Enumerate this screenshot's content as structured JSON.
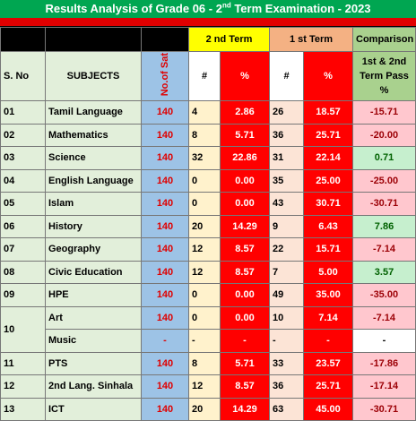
{
  "header": {
    "title_before": "Results Analysis of Grade  06  - 2",
    "title_sup": "nd",
    "title_after": " Term Examination  - 2023"
  },
  "columns": {
    "term2": "2 nd Term",
    "term1": "1 st Term",
    "comparison": "Comparison",
    "sno": "S. No",
    "subjects": "SUBJECTS",
    "sat": "No.of Sat",
    "t2n": "#",
    "t2p": "%",
    "t1n": "#",
    "t1p": "%",
    "comp": "1st & 2nd Term Pass %"
  },
  "table": {
    "rows": [
      {
        "sno": "01",
        "subject": "Tamil Language",
        "sat": "140",
        "t2n": "4",
        "t2p": "2.86",
        "t1n": "26",
        "t1p": "18.57",
        "comp": "-15.71"
      },
      {
        "sno": "02",
        "subject": "Mathematics",
        "sat": "140",
        "t2n": "8",
        "t2p": "5.71",
        "t1n": "36",
        "t1p": "25.71",
        "comp": "-20.00"
      },
      {
        "sno": "03",
        "subject": "Science",
        "sat": "140",
        "t2n": "32",
        "t2p": "22.86",
        "t1n": "31",
        "t1p": "22.14",
        "comp": "0.71"
      },
      {
        "sno": "04",
        "subject": "English  Language",
        "sat": "140",
        "t2n": "0",
        "t2p": "0.00",
        "t1n": "35",
        "t1p": "25.00",
        "comp": "-25.00"
      },
      {
        "sno": "05",
        "subject": "Islam",
        "sat": "140",
        "t2n": "0",
        "t2p": "0.00",
        "t1n": "43",
        "t1p": "30.71",
        "comp": "-30.71"
      },
      {
        "sno": "06",
        "subject": "History",
        "sat": "140",
        "t2n": "20",
        "t2p": "14.29",
        "t1n": "9",
        "t1p": "6.43",
        "comp": "7.86"
      },
      {
        "sno": "07",
        "subject": "Geography",
        "sat": "140",
        "t2n": "12",
        "t2p": "8.57",
        "t1n": "22",
        "t1p": "15.71",
        "comp": "-7.14"
      },
      {
        "sno": "08",
        "subject": "Civic Education",
        "sat": "140",
        "t2n": "12",
        "t2p": "8.57",
        "t1n": "7",
        "t1p": "5.00",
        "comp": "3.57"
      },
      {
        "sno": "09",
        "subject": "HPE",
        "sat": "140",
        "t2n": "0",
        "t2p": "0.00",
        "t1n": "49",
        "t1p": "35.00",
        "comp": "-35.00"
      },
      {
        "sno": "10",
        "subject": "Art",
        "sat": "140",
        "t2n": "0",
        "t2p": "0.00",
        "t1n": "10",
        "t1p": "7.14",
        "comp": "-7.14"
      },
      {
        "subject": "Music",
        "sat": "-",
        "t2n": "-",
        "t2p": "-",
        "t1n": "-",
        "t1p": "-",
        "comp": "-"
      },
      {
        "sno": "11",
        "subject": "PTS",
        "sat": "140",
        "t2n": "8",
        "t2p": "5.71",
        "t1n": "33",
        "t1p": "23.57",
        "comp": "-17.86"
      },
      {
        "sno": "12",
        "subject": "2nd Lang. Sinhala",
        "sat": "140",
        "t2n": "12",
        "t2p": "8.57",
        "t1n": "36",
        "t1p": "25.71",
        "comp": "-17.14"
      },
      {
        "sno": "13",
        "subject": "ICT",
        "sat": "140",
        "t2n": "20",
        "t2p": "14.29",
        "t1n": "63",
        "t1p": "45.00",
        "comp": "-30.71"
      }
    ]
  }
}
